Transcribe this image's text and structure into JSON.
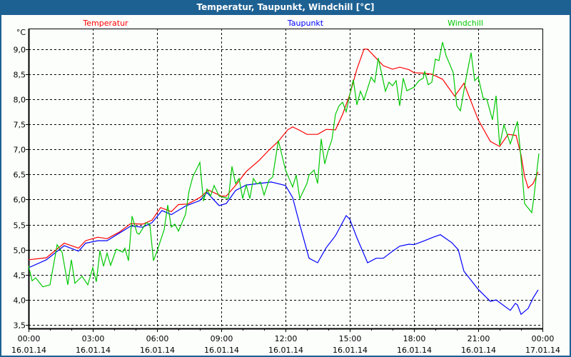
{
  "window": {
    "title": "Temperatur, Taupunkt, Windchill [°C]"
  },
  "chart_data": {
    "type": "line",
    "title": "Temperatur, Taupunkt, Windchill [°C]",
    "ylabel": "°C",
    "ylim": [
      3.43,
      9.41
    ],
    "yticks": [
      "3,5",
      "4,0",
      "4,5",
      "5,0",
      "5,5",
      "6,0",
      "6,5",
      "7,0",
      "7,5",
      "8,0",
      "8,5",
      "9,0"
    ],
    "ytick_values": [
      3.5,
      4.0,
      4.5,
      5.0,
      5.5,
      6.0,
      6.5,
      7.0,
      7.5,
      8.0,
      8.5,
      9.0
    ],
    "xlim": [
      "16.01.14 00:00",
      "17.01.14 00:00"
    ],
    "xticks": [
      {
        "time": "00:00",
        "date": "16.01.14"
      },
      {
        "time": "03:00",
        "date": "16.01.14"
      },
      {
        "time": "06:00",
        "date": "16.01.14"
      },
      {
        "time": "09:00",
        "date": "16.01.14"
      },
      {
        "time": "12:00",
        "date": "16.01.14"
      },
      {
        "time": "15:00",
        "date": "16.01.14"
      },
      {
        "time": "18:00",
        "date": "16.01.14"
      },
      {
        "time": "21:00",
        "date": "16.01.14"
      },
      {
        "time": "00:00",
        "date": "17.01.14"
      }
    ],
    "grid": true,
    "legend_placement": "top",
    "series": [
      {
        "name": "Temperatur",
        "color": "#ff0000",
        "points": [
          [
            "00:00",
            4.8
          ],
          [
            "00:50",
            4.84
          ],
          [
            "01:40",
            5.13
          ],
          [
            "02:20",
            5.03
          ],
          [
            "02:40",
            5.18
          ],
          [
            "03:14",
            5.25
          ],
          [
            "03:40",
            5.22
          ],
          [
            "04:14",
            5.35
          ],
          [
            "04:46",
            5.52
          ],
          [
            "05:20",
            5.51
          ],
          [
            "05:46",
            5.59
          ],
          [
            "06:10",
            5.84
          ],
          [
            "06:40",
            5.76
          ],
          [
            "07:00",
            5.9
          ],
          [
            "07:26",
            5.91
          ],
          [
            "08:00",
            6.04
          ],
          [
            "08:24",
            6.19
          ],
          [
            "09:00",
            6.07
          ],
          [
            "09:14",
            6.07
          ],
          [
            "09:40",
            6.28
          ],
          [
            "10:10",
            6.56
          ],
          [
            "10:46",
            6.78
          ],
          [
            "11:14",
            6.99
          ],
          [
            "11:40",
            7.16
          ],
          [
            "12:06",
            7.39
          ],
          [
            "12:20",
            7.45
          ],
          [
            "12:40",
            7.38
          ],
          [
            "13:00",
            7.3
          ],
          [
            "13:30",
            7.3
          ],
          [
            "13:54",
            7.4
          ],
          [
            "14:20",
            7.39
          ],
          [
            "14:40",
            7.7
          ],
          [
            "15:00",
            8.09
          ],
          [
            "15:20",
            8.6
          ],
          [
            "15:40",
            9.0
          ],
          [
            "15:50",
            9.0
          ],
          [
            "16:14",
            8.82
          ],
          [
            "16:34",
            8.67
          ],
          [
            "17:00",
            8.6
          ],
          [
            "17:20",
            8.64
          ],
          [
            "17:46",
            8.59
          ],
          [
            "18:00",
            8.53
          ],
          [
            "18:26",
            8.52
          ],
          [
            "18:50",
            8.5
          ],
          [
            "19:20",
            8.4
          ],
          [
            "19:54",
            8.06
          ],
          [
            "20:20",
            8.32
          ],
          [
            "21:00",
            7.59
          ],
          [
            "21:34",
            7.16
          ],
          [
            "22:00",
            7.06
          ],
          [
            "22:24",
            7.3
          ],
          [
            "22:46",
            7.28
          ],
          [
            "23:00",
            6.89
          ],
          [
            "23:10",
            6.46
          ],
          [
            "23:20",
            6.23
          ],
          [
            "23:34",
            6.32
          ],
          [
            "23:48",
            6.55
          ]
        ]
      },
      {
        "name": "Taupunkt",
        "color": "#0000ff",
        "points": [
          [
            "00:00",
            4.64
          ],
          [
            "00:50",
            4.8
          ],
          [
            "01:40",
            5.08
          ],
          [
            "02:20",
            4.97
          ],
          [
            "02:40",
            5.13
          ],
          [
            "03:14",
            5.18
          ],
          [
            "03:40",
            5.18
          ],
          [
            "04:46",
            5.47
          ],
          [
            "05:20",
            5.45
          ],
          [
            "05:46",
            5.54
          ],
          [
            "06:14",
            5.78
          ],
          [
            "06:40",
            5.7
          ],
          [
            "07:20",
            5.87
          ],
          [
            "08:00",
            5.98
          ],
          [
            "08:20",
            6.14
          ],
          [
            "08:54",
            5.88
          ],
          [
            "09:14",
            5.92
          ],
          [
            "09:40",
            6.18
          ],
          [
            "10:10",
            6.29
          ],
          [
            "10:46",
            6.32
          ],
          [
            "11:20",
            6.35
          ],
          [
            "12:00",
            6.28
          ],
          [
            "12:20",
            6.04
          ],
          [
            "12:40",
            5.5
          ],
          [
            "13:06",
            4.83
          ],
          [
            "13:30",
            4.74
          ],
          [
            "13:54",
            5.04
          ],
          [
            "14:20",
            5.28
          ],
          [
            "14:50",
            5.68
          ],
          [
            "15:00",
            5.61
          ],
          [
            "15:20",
            5.24
          ],
          [
            "15:50",
            4.74
          ],
          [
            "16:14",
            4.83
          ],
          [
            "16:34",
            4.83
          ],
          [
            "17:00",
            4.97
          ],
          [
            "17:20",
            5.07
          ],
          [
            "17:46",
            5.11
          ],
          [
            "18:00",
            5.1
          ],
          [
            "18:26",
            5.17
          ],
          [
            "18:54",
            5.25
          ],
          [
            "19:14",
            5.3
          ],
          [
            "19:46",
            5.14
          ],
          [
            "20:04",
            5.0
          ],
          [
            "20:20",
            4.57
          ],
          [
            "21:00",
            4.21
          ],
          [
            "21:34",
            3.97
          ],
          [
            "21:50",
            4.0
          ],
          [
            "22:30",
            3.79
          ],
          [
            "22:44",
            3.93
          ],
          [
            "22:50",
            3.9
          ],
          [
            "23:00",
            3.71
          ],
          [
            "23:20",
            3.83
          ],
          [
            "23:34",
            4.04
          ],
          [
            "23:48",
            4.2
          ]
        ]
      },
      {
        "name": "Windchill",
        "color": "#00c800",
        "points": [
          [
            "00:00",
            4.68
          ],
          [
            "00:10",
            4.38
          ],
          [
            "00:20",
            4.44
          ],
          [
            "00:40",
            4.26
          ],
          [
            "01:00",
            4.3
          ],
          [
            "01:14",
            4.85
          ],
          [
            "01:20",
            5.1
          ],
          [
            "01:34",
            4.95
          ],
          [
            "01:50",
            4.3
          ],
          [
            "02:00",
            4.8
          ],
          [
            "02:10",
            4.33
          ],
          [
            "02:30",
            4.47
          ],
          [
            "02:46",
            4.3
          ],
          [
            "03:00",
            4.64
          ],
          [
            "03:10",
            4.36
          ],
          [
            "03:20",
            4.98
          ],
          [
            "03:30",
            4.67
          ],
          [
            "03:40",
            4.93
          ],
          [
            "03:50",
            4.69
          ],
          [
            "04:06",
            5.01
          ],
          [
            "04:24",
            4.95
          ],
          [
            "04:30",
            5.03
          ],
          [
            "04:40",
            4.78
          ],
          [
            "04:50",
            5.67
          ],
          [
            "05:04",
            5.33
          ],
          [
            "05:10",
            5.31
          ],
          [
            "05:30",
            5.54
          ],
          [
            "05:40",
            5.5
          ],
          [
            "05:50",
            4.78
          ],
          [
            "06:00",
            4.97
          ],
          [
            "06:20",
            5.4
          ],
          [
            "06:30",
            5.89
          ],
          [
            "06:40",
            5.45
          ],
          [
            "06:50",
            5.51
          ],
          [
            "07:00",
            5.37
          ],
          [
            "07:20",
            5.71
          ],
          [
            "07:30",
            6.18
          ],
          [
            "07:40",
            6.45
          ],
          [
            "08:00",
            6.74
          ],
          [
            "08:10",
            5.97
          ],
          [
            "08:20",
            6.21
          ],
          [
            "08:30",
            6.07
          ],
          [
            "08:40",
            6.28
          ],
          [
            "08:54",
            6.07
          ],
          [
            "09:20",
            6.02
          ],
          [
            "09:30",
            6.66
          ],
          [
            "09:40",
            6.32
          ],
          [
            "09:50",
            6.42
          ],
          [
            "10:00",
            6.02
          ],
          [
            "10:10",
            6.29
          ],
          [
            "10:20",
            6.02
          ],
          [
            "10:30",
            6.42
          ],
          [
            "10:40",
            6.31
          ],
          [
            "10:50",
            6.35
          ],
          [
            "11:00",
            6.09
          ],
          [
            "11:14",
            6.39
          ],
          [
            "11:24",
            6.45
          ],
          [
            "11:40",
            7.18
          ],
          [
            "12:00",
            6.59
          ],
          [
            "12:20",
            6.25
          ],
          [
            "12:30",
            6.49
          ],
          [
            "12:40",
            6.02
          ],
          [
            "13:00",
            6.32
          ],
          [
            "13:06",
            6.49
          ],
          [
            "13:20",
            6.59
          ],
          [
            "13:30",
            6.32
          ],
          [
            "13:40",
            7.21
          ],
          [
            "13:50",
            6.71
          ],
          [
            "14:00",
            6.99
          ],
          [
            "14:10",
            7.19
          ],
          [
            "14:20",
            7.7
          ],
          [
            "14:30",
            7.87
          ],
          [
            "14:40",
            7.94
          ],
          [
            "14:50",
            7.75
          ],
          [
            "15:00",
            8.09
          ],
          [
            "15:10",
            8.39
          ],
          [
            "15:20",
            7.89
          ],
          [
            "15:30",
            8.16
          ],
          [
            "15:40",
            7.99
          ],
          [
            "16:00",
            8.44
          ],
          [
            "16:10",
            8.34
          ],
          [
            "16:20",
            8.82
          ],
          [
            "16:40",
            8.16
          ],
          [
            "16:50",
            8.34
          ],
          [
            "17:00",
            8.27
          ],
          [
            "17:10",
            8.37
          ],
          [
            "17:20",
            7.87
          ],
          [
            "17:30",
            8.42
          ],
          [
            "17:40",
            8.17
          ],
          [
            "18:00",
            8.24
          ],
          [
            "18:14",
            8.37
          ],
          [
            "18:26",
            8.42
          ],
          [
            "18:30",
            8.56
          ],
          [
            "18:40",
            8.29
          ],
          [
            "18:50",
            8.34
          ],
          [
            "19:00",
            8.8
          ],
          [
            "19:10",
            8.77
          ],
          [
            "19:20",
            9.14
          ],
          [
            "19:30",
            8.87
          ],
          [
            "19:50",
            8.53
          ],
          [
            "20:00",
            7.87
          ],
          [
            "20:10",
            7.77
          ],
          [
            "20:26",
            8.42
          ],
          [
            "20:40",
            8.93
          ],
          [
            "20:50",
            8.37
          ],
          [
            "21:00",
            8.44
          ],
          [
            "21:14",
            8.02
          ],
          [
            "21:24",
            8.0
          ],
          [
            "21:40",
            7.59
          ],
          [
            "21:50",
            8.07
          ],
          [
            "22:00",
            7.08
          ],
          [
            "22:12",
            7.49
          ],
          [
            "22:30",
            7.11
          ],
          [
            "22:50",
            7.56
          ],
          [
            "23:00",
            6.81
          ],
          [
            "23:10",
            5.92
          ],
          [
            "23:30",
            5.74
          ],
          [
            "23:36",
            6.04
          ],
          [
            "23:50",
            6.92
          ]
        ]
      }
    ]
  }
}
